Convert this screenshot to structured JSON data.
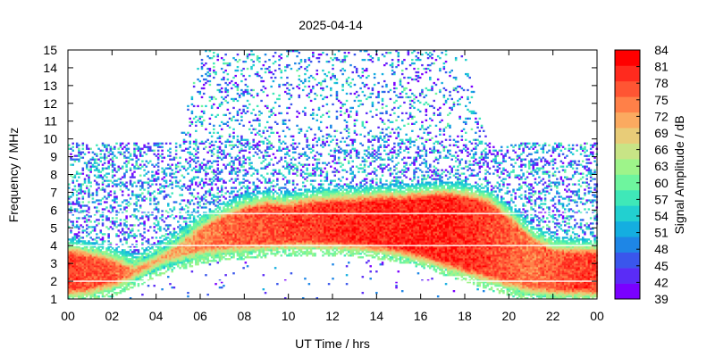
{
  "chart_data": {
    "type": "heatmap",
    "title": "2025-04-14",
    "xlabel": "UT Time / hrs",
    "ylabel": "Frequency / MHz",
    "colorbar_label": "Signal Amplitude / dB",
    "xlim": [
      0,
      24
    ],
    "ylim": [
      1,
      15
    ],
    "x_tick_labels": [
      "00",
      "02",
      "04",
      "06",
      "08",
      "10",
      "12",
      "14",
      "16",
      "18",
      "20",
      "22",
      "00"
    ],
    "y_ticks": [
      1,
      2,
      3,
      4,
      5,
      6,
      7,
      8,
      9,
      10,
      11,
      12,
      13,
      14,
      15
    ],
    "colorbar_range": [
      39,
      84
    ],
    "colorbar_ticks": [
      39,
      42,
      45,
      48,
      51,
      54,
      57,
      60,
      63,
      66,
      69,
      72,
      75,
      78,
      81,
      84
    ],
    "colors": [
      "#7a00ff",
      "#5a2cf6",
      "#3a56ec",
      "#1e86e6",
      "#14aee0",
      "#22d0d0",
      "#3fe8b8",
      "#6ef59e",
      "#9ef48a",
      "#c8e486",
      "#e8cc78",
      "#fbaa60",
      "#ff8048",
      "#ff5533",
      "#ff2a1e",
      "#ff0000"
    ],
    "grid": true,
    "profiles": {
      "time_hrs": [
        0,
        1,
        2,
        3,
        4,
        5,
        6,
        7,
        8,
        9,
        10,
        11,
        12,
        13,
        14,
        15,
        16,
        17,
        18,
        19,
        20,
        21,
        22,
        23,
        24
      ],
      "strong_echo_lower_edge_mhz": [
        1.1,
        1.2,
        1.5,
        2.0,
        2.6,
        3.0,
        3.3,
        3.5,
        3.6,
        3.7,
        3.8,
        3.8,
        3.8,
        3.7,
        3.6,
        3.4,
        3.1,
        2.7,
        2.3,
        1.9,
        1.5,
        1.2,
        1.1,
        1.1,
        1.1
      ],
      "strong_echo_upper_edge_mhz": [
        4.0,
        3.8,
        3.5,
        3.1,
        3.7,
        4.5,
        5.4,
        6.0,
        6.5,
        6.7,
        6.6,
        6.8,
        6.9,
        6.9,
        7.0,
        7.0,
        7.1,
        7.2,
        7.1,
        6.8,
        5.9,
        4.8,
        4.1,
        4.0,
        4.0
      ],
      "strong_echo_peak_db": [
        82,
        81,
        80,
        77,
        74,
        75,
        77,
        79,
        80,
        81,
        82,
        82,
        83,
        83,
        84,
        84,
        84,
        84,
        83,
        82,
        80,
        78,
        80,
        82,
        82
      ],
      "sparse_noise_upper_limit_mhz": [
        9.8,
        9.8,
        9.8,
        9.8,
        9.8,
        9.8,
        15.0,
        15.0,
        15.0,
        15.0,
        15.0,
        15.0,
        15.0,
        15.0,
        15.0,
        15.0,
        15.0,
        15.0,
        14.6,
        9.8,
        9.8,
        9.8,
        9.8,
        9.8,
        9.8
      ],
      "sparse_noise_range_db": [
        39,
        60
      ]
    },
    "interference_lines_mhz": [
      2.0,
      4.0,
      5.8
    ]
  }
}
